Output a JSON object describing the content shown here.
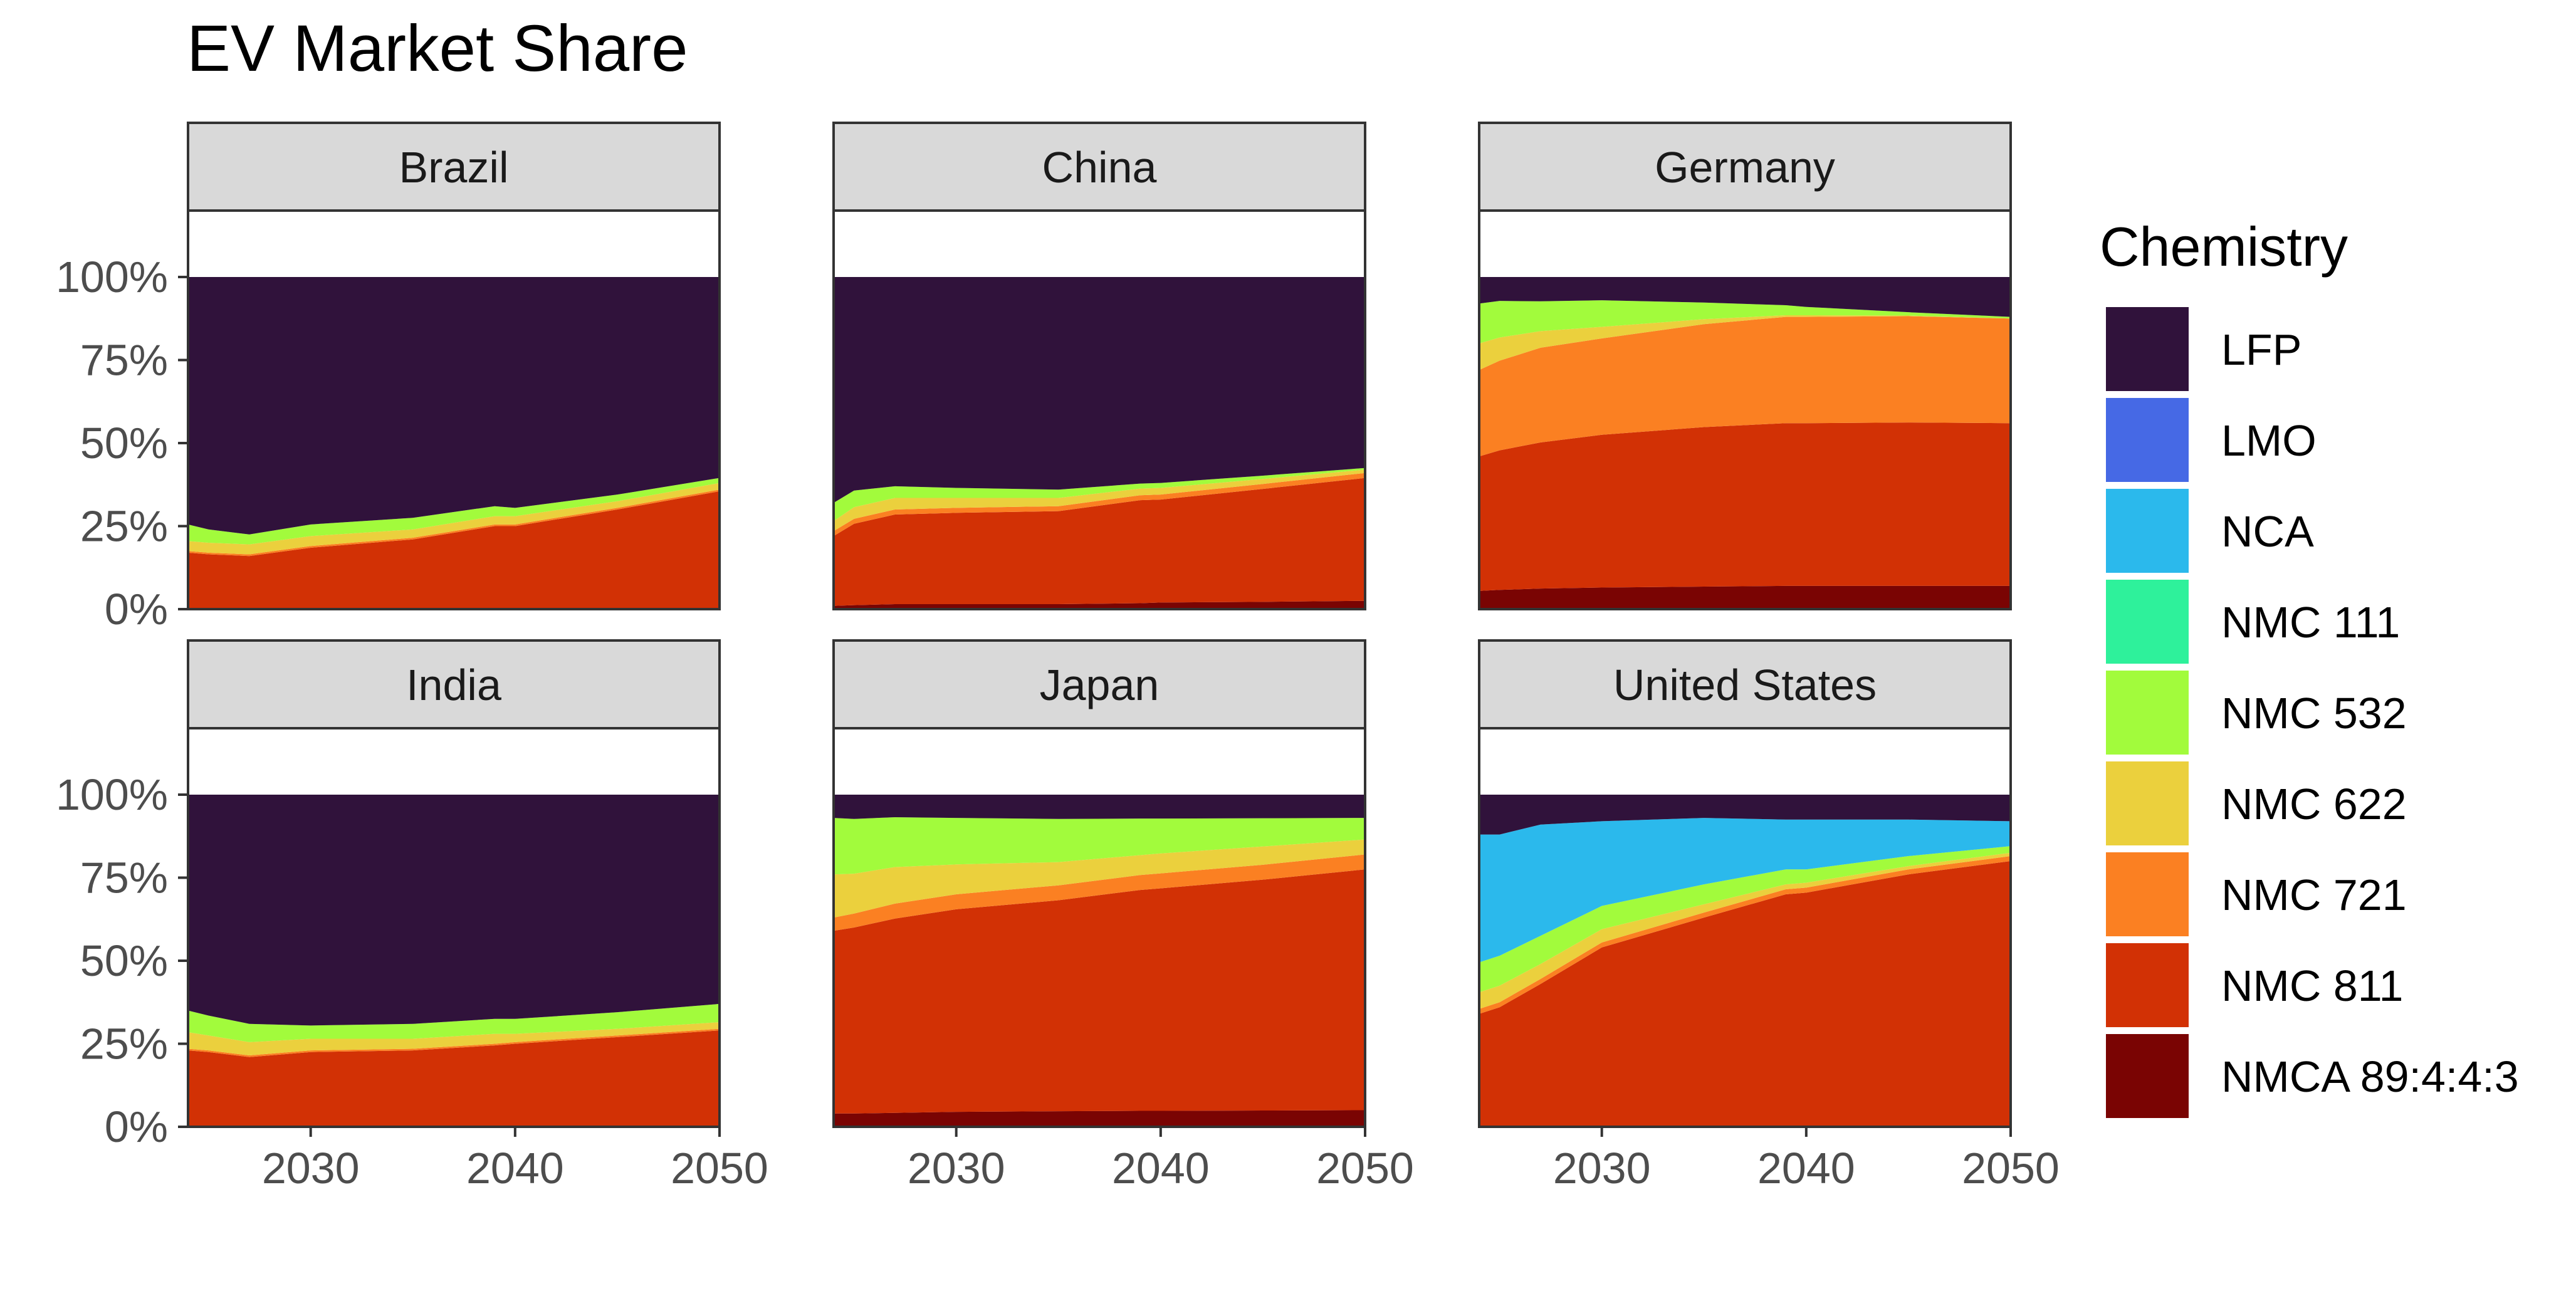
{
  "chart_data": {
    "type": "area",
    "stacked": true,
    "title": "EV Market Share",
    "xlabel": "",
    "ylabel": "",
    "xlim": [
      2024,
      2050
    ],
    "ylim": [
      0,
      1.2
    ],
    "x_ticks": [
      "2030",
      "2040",
      "2050"
    ],
    "y_ticks": [
      "0%",
      "25%",
      "50%",
      "75%",
      "100%"
    ],
    "grid": false,
    "legend": {
      "title": "Chemistry",
      "placement": "right",
      "entries": [
        {
          "name": "LFP",
          "color": "#30123B"
        },
        {
          "name": "LMO",
          "color": "#4669E5"
        },
        {
          "name": "NCA",
          "color": "#2BB9EC"
        },
        {
          "name": "NMC 111",
          "color": "#2EF19B"
        },
        {
          "name": "NMC 532",
          "color": "#A2FB3C"
        },
        {
          "name": "NMC 622",
          "color": "#EBD03D"
        },
        {
          "name": "NMC 721",
          "color": "#FB8022"
        },
        {
          "name": "NMC 811",
          "color": "#D23105"
        },
        {
          "name": "NMCA 89:4:4:3",
          "color": "#7A0403"
        }
      ]
    },
    "stack_order_bottom_to_top": [
      "NMCA 89:4:4:3",
      "NMC 811",
      "NMC 721",
      "NMC 622",
      "NMC 532",
      "NMC 111",
      "NCA",
      "LMO",
      "LFP"
    ],
    "x": [
      2024,
      2025,
      2027,
      2030,
      2035,
      2039,
      2040,
      2045,
      2050
    ],
    "panels": [
      {
        "name": "Brazil",
        "series": [
          {
            "name": "NMCA 89:4:4:3",
            "values": [
              0,
              0,
              0,
              0,
              0,
              0,
              0,
              0,
              0
            ]
          },
          {
            "name": "NMC 811",
            "values": [
              0.17,
              0.165,
              0.16,
              0.185,
              0.21,
              0.25,
              0.25,
              0.3,
              0.355
            ]
          },
          {
            "name": "NMC 721",
            "values": [
              0.005,
              0.005,
              0.005,
              0.005,
              0.005,
              0.005,
              0.005,
              0.005,
              0.005
            ]
          },
          {
            "name": "NMC 622",
            "values": [
              0.03,
              0.03,
              0.03,
              0.03,
              0.025,
              0.025,
              0.025,
              0.02,
              0.02
            ]
          },
          {
            "name": "NMC 532",
            "values": [
              0.05,
              0.04,
              0.03,
              0.035,
              0.035,
              0.03,
              0.025,
              0.02,
              0.015
            ]
          },
          {
            "name": "NMC 111",
            "values": [
              0,
              0,
              0,
              0,
              0,
              0,
              0,
              0,
              0
            ]
          },
          {
            "name": "NCA",
            "values": [
              0,
              0,
              0,
              0,
              0,
              0,
              0,
              0,
              0
            ]
          },
          {
            "name": "LMO",
            "values": [
              0,
              0,
              0,
              0,
              0,
              0,
              0,
              0,
              0
            ]
          },
          {
            "name": "LFP",
            "values": [
              0.745,
              0.76,
              0.775,
              0.745,
              0.725,
              0.69,
              0.695,
              0.655,
              0.605
            ]
          }
        ]
      },
      {
        "name": "China",
        "series": [
          {
            "name": "NMCA 89:4:4:3",
            "values": [
              0.01,
              0.012,
              0.015,
              0.015,
              0.015,
              0.018,
              0.02,
              0.022,
              0.025
            ]
          },
          {
            "name": "NMC 811",
            "values": [
              0.21,
              0.245,
              0.27,
              0.275,
              0.28,
              0.31,
              0.31,
              0.34,
              0.37
            ]
          },
          {
            "name": "NMC 721",
            "values": [
              0.015,
              0.015,
              0.015,
              0.015,
              0.015,
              0.015,
              0.015,
              0.015,
              0.015
            ]
          },
          {
            "name": "NMC 622",
            "values": [
              0.03,
              0.035,
              0.035,
              0.03,
              0.025,
              0.02,
              0.02,
              0.015,
              0.01
            ]
          },
          {
            "name": "NMC 532",
            "values": [
              0.055,
              0.05,
              0.035,
              0.03,
              0.025,
              0.015,
              0.015,
              0.01,
              0.005
            ]
          },
          {
            "name": "NMC 111",
            "values": [
              0,
              0,
              0,
              0,
              0,
              0,
              0,
              0,
              0
            ]
          },
          {
            "name": "NCA",
            "values": [
              0,
              0,
              0,
              0,
              0,
              0,
              0,
              0,
              0
            ]
          },
          {
            "name": "LMO",
            "values": [
              0,
              0,
              0,
              0,
              0,
              0,
              0,
              0,
              0
            ]
          },
          {
            "name": "LFP",
            "values": [
              0.68,
              0.643,
              0.63,
              0.635,
              0.64,
              0.622,
              0.62,
              0.598,
              0.575
            ]
          }
        ]
      },
      {
        "name": "Germany",
        "series": [
          {
            "name": "NMCA 89:4:4:3",
            "values": [
              0.055,
              0.058,
              0.062,
              0.065,
              0.068,
              0.07,
              0.07,
              0.07,
              0.07
            ]
          },
          {
            "name": "NMC 811",
            "values": [
              0.405,
              0.42,
              0.44,
              0.46,
              0.48,
              0.49,
              0.49,
              0.492,
              0.49
            ]
          },
          {
            "name": "NMC 721",
            "values": [
              0.26,
              0.27,
              0.285,
              0.29,
              0.31,
              0.32,
              0.32,
              0.32,
              0.315
            ]
          },
          {
            "name": "NMC 622",
            "values": [
              0.08,
              0.07,
              0.05,
              0.035,
              0.015,
              0.005,
              0.005,
              0.002,
              0.0
            ]
          },
          {
            "name": "NMC 532",
            "values": [
              0.12,
              0.11,
              0.09,
              0.08,
              0.05,
              0.03,
              0.025,
              0.01,
              0.005
            ]
          },
          {
            "name": "NMC 111",
            "values": [
              0,
              0,
              0,
              0,
              0,
              0,
              0,
              0,
              0
            ]
          },
          {
            "name": "NCA",
            "values": [
              0,
              0,
              0,
              0,
              0,
              0,
              0,
              0,
              0
            ]
          },
          {
            "name": "LMO",
            "values": [
              0,
              0,
              0,
              0,
              0,
              0,
              0,
              0,
              0
            ]
          },
          {
            "name": "LFP",
            "values": [
              0.08,
              0.072,
              0.073,
              0.07,
              0.077,
              0.085,
              0.09,
              0.106,
              0.12
            ]
          }
        ]
      },
      {
        "name": "India",
        "series": [
          {
            "name": "NMCA 89:4:4:3",
            "values": [
              0,
              0,
              0,
              0,
              0,
              0,
              0,
              0,
              0
            ]
          },
          {
            "name": "NMC 811",
            "values": [
              0.23,
              0.225,
              0.21,
              0.225,
              0.23,
              0.245,
              0.25,
              0.27,
              0.29
            ]
          },
          {
            "name": "NMC 721",
            "values": [
              0.005,
              0.005,
              0.005,
              0.005,
              0.005,
              0.005,
              0.005,
              0.005,
              0.005
            ]
          },
          {
            "name": "NMC 622",
            "values": [
              0.05,
              0.045,
              0.04,
              0.035,
              0.03,
              0.03,
              0.025,
              0.02,
              0.02
            ]
          },
          {
            "name": "NMC 532",
            "values": [
              0.065,
              0.06,
              0.055,
              0.04,
              0.045,
              0.045,
              0.045,
              0.05,
              0.055
            ]
          },
          {
            "name": "NMC 111",
            "values": [
              0,
              0,
              0,
              0,
              0,
              0,
              0,
              0,
              0
            ]
          },
          {
            "name": "NCA",
            "values": [
              0,
              0,
              0,
              0,
              0,
              0,
              0,
              0,
              0
            ]
          },
          {
            "name": "LMO",
            "values": [
              0,
              0,
              0,
              0,
              0,
              0,
              0,
              0,
              0
            ]
          },
          {
            "name": "LFP",
            "values": [
              0.65,
              0.665,
              0.69,
              0.695,
              0.69,
              0.675,
              0.675,
              0.655,
              0.63
            ]
          }
        ]
      },
      {
        "name": "Japan",
        "series": [
          {
            "name": "NMCA 89:4:4:3",
            "values": [
              0.04,
              0.04,
              0.042,
              0.045,
              0.047,
              0.048,
              0.048,
              0.049,
              0.05
            ]
          },
          {
            "name": "NMC 811",
            "values": [
              0.55,
              0.56,
              0.585,
              0.61,
              0.635,
              0.665,
              0.67,
              0.695,
              0.725
            ]
          },
          {
            "name": "NMC 721",
            "values": [
              0.04,
              0.042,
              0.045,
              0.045,
              0.045,
              0.045,
              0.045,
              0.045,
              0.045
            ]
          },
          {
            "name": "NMC 622",
            "values": [
              0.13,
              0.12,
              0.11,
              0.09,
              0.07,
              0.06,
              0.06,
              0.055,
              0.045
            ]
          },
          {
            "name": "NMC 532",
            "values": [
              0.17,
              0.165,
              0.15,
              0.14,
              0.13,
              0.11,
              0.105,
              0.085,
              0.065
            ]
          },
          {
            "name": "NMC 111",
            "values": [
              0,
              0,
              0,
              0,
              0,
              0,
              0,
              0,
              0
            ]
          },
          {
            "name": "NCA",
            "values": [
              0,
              0,
              0,
              0,
              0,
              0,
              0,
              0,
              0
            ]
          },
          {
            "name": "LMO",
            "values": [
              0,
              0,
              0,
              0,
              0,
              0,
              0,
              0,
              0
            ]
          },
          {
            "name": "LFP",
            "values": [
              0.07,
              0.073,
              0.068,
              0.07,
              0.073,
              0.072,
              0.072,
              0.071,
              0.07
            ]
          }
        ]
      },
      {
        "name": "United States",
        "series": [
          {
            "name": "NMCA 89:4:4:3",
            "values": [
              0,
              0,
              0,
              0,
              0,
              0,
              0,
              0,
              0
            ]
          },
          {
            "name": "NMC 811",
            "values": [
              0.34,
              0.36,
              0.43,
              0.54,
              0.63,
              0.7,
              0.705,
              0.76,
              0.8
            ]
          },
          {
            "name": "NMC 721",
            "values": [
              0.015,
              0.015,
              0.015,
              0.015,
              0.015,
              0.015,
              0.015,
              0.015,
              0.015
            ]
          },
          {
            "name": "NMC 622",
            "values": [
              0.05,
              0.05,
              0.045,
              0.04,
              0.025,
              0.015,
              0.015,
              0.01,
              0.01
            ]
          },
          {
            "name": "NMC 532",
            "values": [
              0.09,
              0.09,
              0.085,
              0.07,
              0.06,
              0.045,
              0.04,
              0.03,
              0.02
            ]
          },
          {
            "name": "NMC 111",
            "values": [
              0,
              0,
              0,
              0,
              0,
              0,
              0,
              0,
              0
            ]
          },
          {
            "name": "NCA",
            "values": [
              0.385,
              0.365,
              0.335,
              0.255,
              0.2,
              0.15,
              0.15,
              0.11,
              0.075
            ]
          },
          {
            "name": "LMO",
            "values": [
              0,
              0,
              0,
              0,
              0,
              0,
              0,
              0,
              0
            ]
          },
          {
            "name": "LFP",
            "values": [
              0.12,
              0.12,
              0.09,
              0.08,
              0.07,
              0.075,
              0.075,
              0.075,
              0.08
            ]
          }
        ]
      }
    ]
  }
}
